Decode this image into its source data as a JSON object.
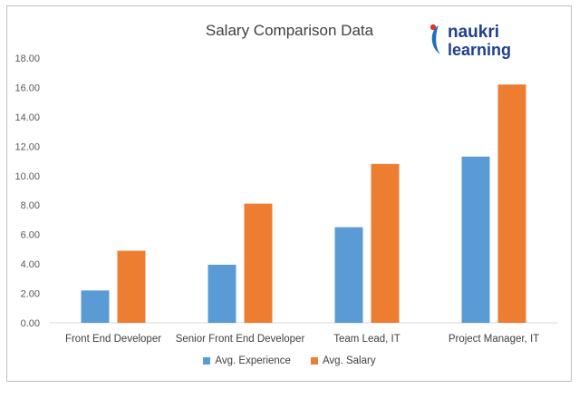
{
  "chart_data": {
    "type": "bar",
    "title": "Salary Comparison Data",
    "xlabel": "",
    "ylabel": "",
    "ylim": [
      0,
      18
    ],
    "yticks": [
      "0.00",
      "2.00",
      "4.00",
      "6.00",
      "8.00",
      "10.00",
      "12.00",
      "14.00",
      "16.00",
      "18.00"
    ],
    "grid": false,
    "legend_position": "bottom",
    "categories": [
      "Front End Developer",
      "Senior Front End Developer",
      "Team Lead, IT",
      "Project Manager, IT"
    ],
    "series": [
      {
        "name": "Avg. Experience",
        "color": "#5b9bd5",
        "values": [
          2.2,
          3.95,
          6.5,
          11.3
        ]
      },
      {
        "name": "Avg. Salary",
        "color": "#ed7d31",
        "values": [
          4.9,
          8.1,
          10.8,
          16.2
        ]
      }
    ]
  },
  "logo": {
    "line1": "naukri",
    "line2": "learning"
  }
}
